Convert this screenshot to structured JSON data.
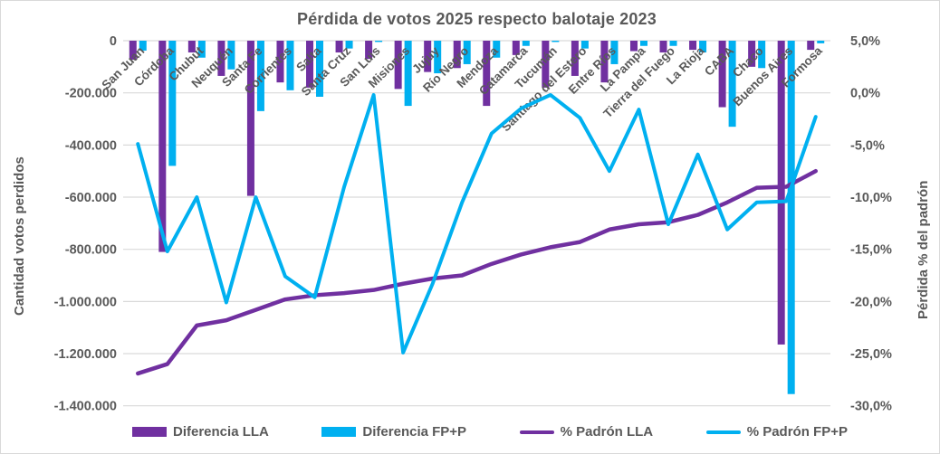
{
  "chart_data": {
    "type": "combo-bar-line",
    "title": "Pérdida de votos 2025 respecto balotaje 2023",
    "ylabel_left": "Cantidad votos perdidos",
    "ylabel_right": "Pérdida % del padrón",
    "categories": [
      "San Juan",
      "Córdoba",
      "Chubut",
      "Neuquén",
      "Santa Fe",
      "Corrientes",
      "Salta",
      "Santa Cruz",
      "San Luis",
      "Misiones",
      "Jujuy",
      "Río Negro",
      "Mendoza",
      "Catamarca",
      "Tucumán",
      "Santiago del Estero",
      "Entre Ríos",
      "La Pampa",
      "Tierra del Fuego",
      "La Rioja",
      "CABA",
      "Chaco",
      "Buenos Aires",
      "Formosa"
    ],
    "bar_series": [
      {
        "name": "Diferencia LLA",
        "color": "#7030A0",
        "axis": "left",
        "values": [
          -73000,
          -810000,
          -45000,
          -135000,
          -595000,
          -160000,
          -180000,
          -45000,
          -70000,
          -185000,
          -120000,
          -105000,
          -250000,
          -55000,
          -180000,
          -135000,
          -160000,
          -40000,
          -45000,
          -35000,
          -255000,
          -100000,
          -1165000,
          -35000
        ]
      },
      {
        "name": "Diferencia FP+P",
        "color": "#00B0F0",
        "axis": "left",
        "values": [
          -38000,
          -480000,
          -65000,
          -110000,
          -270000,
          -190000,
          -215000,
          -30000,
          -5000,
          -250000,
          -125000,
          -90000,
          -65000,
          -20000,
          -5000,
          -30000,
          -90000,
          -20000,
          -20000,
          -45000,
          -330000,
          -105000,
          -1355000,
          -10000
        ]
      }
    ],
    "line_series": [
      {
        "name": "% Padrón LLA",
        "color": "#7030A0",
        "axis": "right",
        "values": [
          -26.9,
          -26.0,
          -22.3,
          -21.8,
          -20.8,
          -19.8,
          -19.4,
          -19.2,
          -18.9,
          -18.3,
          -17.8,
          -17.5,
          -16.4,
          -15.5,
          -14.8,
          -14.3,
          -13.1,
          -12.6,
          -12.4,
          -11.7,
          -10.5,
          -9.1,
          -9.0,
          -7.5
        ]
      },
      {
        "name": "% Padrón FP+P",
        "color": "#00B0F0",
        "axis": "right",
        "values": [
          -4.9,
          -15.2,
          -10.0,
          -20.1,
          -10.0,
          -17.6,
          -19.6,
          -9.0,
          -0.2,
          -24.9,
          -18.3,
          -10.5,
          -3.9,
          -1.5,
          -0.2,
          -2.4,
          -7.5,
          -1.6,
          -12.6,
          -5.9,
          -13.1,
          -10.5,
          -10.4,
          -2.3
        ]
      }
    ],
    "y_axis_left": {
      "min": -1400000,
      "max": 0,
      "ticks": [
        "0",
        "-200.000",
        "-400.000",
        "-600.000",
        "-800.000",
        "-1.000.000",
        "-1.200.000",
        "-1.400.000"
      ]
    },
    "y_axis_right": {
      "min": -30,
      "max": 5,
      "ticks": [
        "5,0%",
        "0,0%",
        "-5,0%",
        "-10,0%",
        "-15,0%",
        "-20,0%",
        "-25,0%",
        "-30,0%"
      ]
    },
    "grid": true,
    "legend_position": "bottom",
    "text_color": "#595959",
    "grid_color": "#D9D9D9"
  }
}
